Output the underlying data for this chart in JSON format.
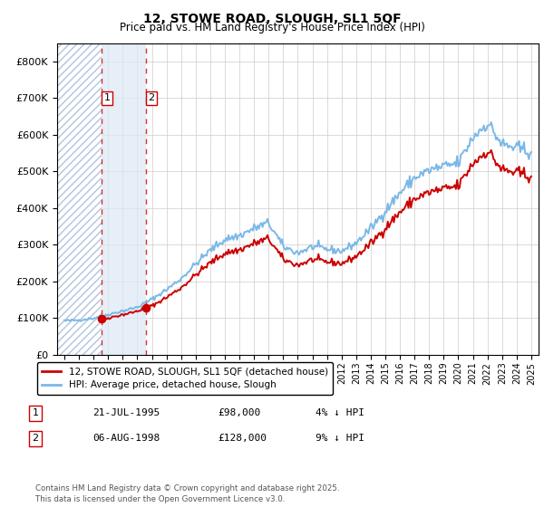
{
  "title": "12, STOWE ROAD, SLOUGH, SL1 5QF",
  "subtitle": "Price paid vs. HM Land Registry's House Price Index (HPI)",
  "sale1_date": "21-JUL-1995",
  "sale1_price": 98000,
  "sale1_label": "1",
  "sale1_hpi_diff": "4% ↓ HPI",
  "sale2_date": "06-AUG-1998",
  "sale2_price": 128000,
  "sale2_label": "2",
  "sale2_hpi_diff": "9% ↓ HPI",
  "legend_house": "12, STOWE ROAD, SLOUGH, SL1 5QF (detached house)",
  "legend_hpi": "HPI: Average price, detached house, Slough",
  "footer": "Contains HM Land Registry data © Crown copyright and database right 2025.\nThis data is licensed under the Open Government Licence v3.0.",
  "hpi_color": "#7ab8e8",
  "price_color": "#cc0000",
  "hatch_color": "#b0c4de",
  "shade_color": "#dce8f5",
  "sale1_x": 1995.55,
  "sale2_x": 1998.59,
  "ylim_max": 850000,
  "xlim_min": 1992.5,
  "xlim_max": 2025.5,
  "fig_width": 6.0,
  "fig_height": 5.6,
  "dpi": 100
}
